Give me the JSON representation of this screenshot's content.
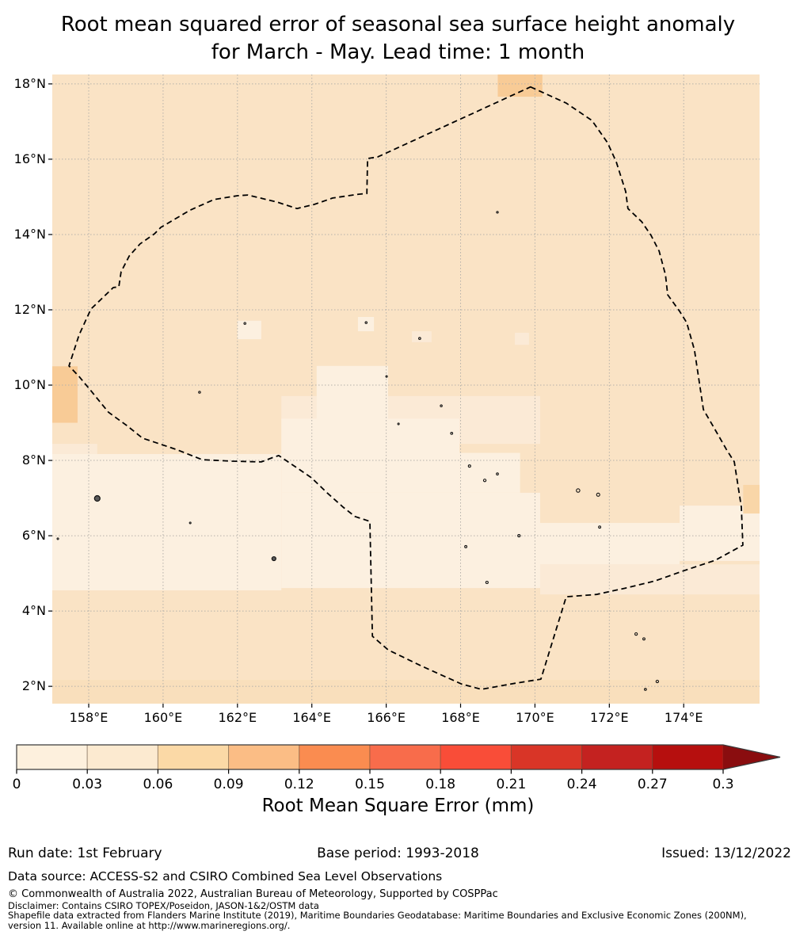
{
  "title": {
    "line1": "Root mean squared error of seasonal sea surface height anomaly",
    "line2": "for March - May. Lead time: 1 month"
  },
  "colorbar": {
    "label": "Root Mean Square Error (mm)",
    "tick_labels": [
      "0",
      "0.03",
      "0.06",
      "0.09",
      "0.12",
      "0.15",
      "0.18",
      "0.21",
      "0.24",
      "0.27",
      "0.3"
    ],
    "segment_colors": [
      "#fdf0dd",
      "#fcead0",
      "#fbd9a6",
      "#fbbd85",
      "#fa8c50",
      "#f86c4b",
      "#f94d38",
      "#d93527",
      "#c42220",
      "#b60f0e"
    ],
    "arrow_color": "#8a0d0f",
    "outline_color": "#3a3a3a",
    "bins": {
      "min": 0,
      "max": 0.3,
      "step": 0.03,
      "extend": "max"
    }
  },
  "footer": {
    "run_date": "Run date: 1st February",
    "base_period": "Base period: 1993-2018",
    "issued": "Issued: 13/12/2022",
    "data_source": "Data source: ACCESS-S2 and CSIRO Combined Sea Level Observations"
  },
  "fine_print": {
    "line1": "© Commonwealth of Australia 2022, Australian Bureau of Meteorology, Supported by COSPPac",
    "line2": "Disclaimer: Contains CSIRO TOPEX/Poseidon, JASON-1&2/OSTM data",
    "line3": "Shapefile data extracted from Flanders Marine Institute (2019), Maritime Boundaries Geodatabase: Maritime Boundaries and Exclusive Economic Zones (200NM),",
    "line4": "version 11. Available online at http://www.marineregions.org/."
  },
  "chart_data": {
    "type": "heatmap",
    "title": "Root mean squared error of seasonal sea surface height anomaly for March - May. Lead time: 1 month",
    "colorbar_label": "Root Mean Square Error (mm)",
    "lon_range": [
      157.02,
      176.04
    ],
    "lat_range": [
      1.54,
      18.25
    ],
    "grid": true,
    "x_ticks": [
      {
        "lon": 158,
        "label": "158°E"
      },
      {
        "lon": 160,
        "label": "160°E"
      },
      {
        "lon": 162,
        "label": "162°E"
      },
      {
        "lon": 164,
        "label": "164°E"
      },
      {
        "lon": 166,
        "label": "166°E"
      },
      {
        "lon": 168,
        "label": "168°E"
      },
      {
        "lon": 170,
        "label": "170°E"
      },
      {
        "lon": 172,
        "label": "172°E"
      },
      {
        "lon": 174,
        "label": "174°E"
      }
    ],
    "y_ticks": [
      {
        "lat": 18,
        "label": "18°N"
      },
      {
        "lat": 16,
        "label": "16°N"
      },
      {
        "lat": 14,
        "label": "14°N"
      },
      {
        "lat": 12,
        "label": "12°N"
      },
      {
        "lat": 10,
        "label": "10°N"
      },
      {
        "lat": 8,
        "label": "8°N"
      },
      {
        "lat": 6,
        "label": "6°N"
      },
      {
        "lat": 4,
        "label": "4°N"
      },
      {
        "lat": 2,
        "label": "2°N"
      }
    ],
    "field_colors": {
      "base": "#fae3c5",
      "cream": "#fcf0e0",
      "semi": "#fbead6",
      "orange": "#f8cb96",
      "orange_light": "#f9d6a8",
      "band": "#f9dfbc",
      "grid_color": "#b5b1aa",
      "boundary_color": "#000000",
      "island_fill": "#5a5a5a",
      "island_stroke": "#111111"
    },
    "field_values_mm": {
      "base": "0.05-0.08",
      "cream": "0.00-0.03",
      "semi": "0.03-0.05",
      "orange": "0.09-0.12",
      "orange_light": "0.08-0.10",
      "band": "0.06-0.09"
    },
    "patches": [
      {
        "color": "band",
        "lon0": 157.02,
        "lon1": 176.04,
        "lat0": 1.54,
        "lat1": 2.17
      },
      {
        "color": "semi",
        "lon0": 157.02,
        "lon1": 158.23,
        "lat0": 8.02,
        "lat1": 8.44
      },
      {
        "color": "semi",
        "lon0": 163.18,
        "lon1": 167.86,
        "lat0": 9.07,
        "lat1": 9.71
      },
      {
        "color": "semi",
        "lon0": 167.86,
        "lon1": 170.14,
        "lat0": 8.44,
        "lat1": 9.71
      },
      {
        "color": "semi",
        "lon0": 170.14,
        "lon1": 176.04,
        "lat0": 4.44,
        "lat1": 5.24
      },
      {
        "color": "semi",
        "lon0": 166.69,
        "lon1": 167.22,
        "lat0": 11.14,
        "lat1": 11.43
      },
      {
        "color": "semi",
        "lon0": 169.46,
        "lon1": 169.84,
        "lat0": 11.07,
        "lat1": 11.39
      },
      {
        "color": "cream",
        "lon0": 164.13,
        "lon1": 166.05,
        "lat0": 9.07,
        "lat1": 10.51
      },
      {
        "color": "cream",
        "lon0": 163.18,
        "lon1": 167.97,
        "lat0": 7.14,
        "lat1": 9.11
      },
      {
        "color": "cream",
        "lon0": 157.02,
        "lon1": 163.18,
        "lat0": 4.55,
        "lat1": 8.17
      },
      {
        "color": "cream",
        "lon0": 163.18,
        "lon1": 170.14,
        "lat0": 4.61,
        "lat1": 7.14
      },
      {
        "color": "cream",
        "lon0": 167.97,
        "lon1": 169.6,
        "lat0": 7.14,
        "lat1": 8.2
      },
      {
        "color": "cream",
        "lon0": 173.89,
        "lon1": 176.04,
        "lat0": 5.33,
        "lat1": 6.8
      },
      {
        "color": "cream",
        "lon0": 170.14,
        "lon1": 173.89,
        "lat0": 5.24,
        "lat1": 6.34
      },
      {
        "color": "cream",
        "lon0": 162.0,
        "lon1": 162.64,
        "lat0": 11.22,
        "lat1": 11.71
      },
      {
        "color": "cream",
        "lon0": 165.24,
        "lon1": 165.67,
        "lat0": 11.43,
        "lat1": 11.81
      },
      {
        "color": "orange",
        "lon0": 157.02,
        "lon1": 157.7,
        "lat0": 9.0,
        "lat1": 10.5
      },
      {
        "color": "orange",
        "lon0": 169.0,
        "lon1": 170.2,
        "lat0": 17.66,
        "lat1": 18.25
      },
      {
        "color": "orange_light",
        "lon0": 175.6,
        "lon1": 176.04,
        "lat0": 6.59,
        "lat1": 7.35
      }
    ],
    "eez_boundary": [
      [
        169.88,
        17.92
      ],
      [
        170.84,
        17.49
      ],
      [
        171.53,
        17.03
      ],
      [
        171.95,
        16.44
      ],
      [
        172.19,
        15.92
      ],
      [
        172.44,
        15.14
      ],
      [
        172.5,
        14.69
      ],
      [
        172.87,
        14.34
      ],
      [
        173.12,
        13.98
      ],
      [
        173.34,
        13.56
      ],
      [
        173.51,
        12.93
      ],
      [
        173.57,
        12.4
      ],
      [
        173.89,
        11.96
      ],
      [
        174.08,
        11.66
      ],
      [
        174.29,
        10.93
      ],
      [
        174.53,
        9.35
      ],
      [
        174.78,
        8.93
      ],
      [
        175.15,
        8.29
      ],
      [
        175.36,
        7.96
      ],
      [
        175.55,
        6.76
      ],
      [
        175.59,
        5.75
      ],
      [
        174.85,
        5.35
      ],
      [
        174.0,
        5.07
      ],
      [
        173.23,
        4.8
      ],
      [
        172.44,
        4.61
      ],
      [
        171.65,
        4.44
      ],
      [
        170.84,
        4.38
      ],
      [
        170.16,
        2.19
      ],
      [
        169.46,
        2.08
      ],
      [
        168.56,
        1.92
      ],
      [
        168.03,
        2.06
      ],
      [
        166.97,
        2.53
      ],
      [
        166.05,
        2.97
      ],
      [
        165.63,
        3.33
      ],
      [
        165.56,
        6.38
      ],
      [
        165.16,
        6.51
      ],
      [
        164.84,
        6.76
      ],
      [
        164.41,
        7.14
      ],
      [
        163.99,
        7.54
      ],
      [
        163.5,
        7.87
      ],
      [
        163.11,
        8.13
      ],
      [
        162.96,
        8.08
      ],
      [
        162.64,
        7.96
      ],
      [
        161.86,
        7.98
      ],
      [
        161.05,
        8.02
      ],
      [
        160.36,
        8.29
      ],
      [
        159.45,
        8.59
      ],
      [
        159.02,
        8.93
      ],
      [
        158.53,
        9.28
      ],
      [
        158.06,
        9.85
      ],
      [
        157.74,
        10.23
      ],
      [
        157.47,
        10.51
      ],
      [
        157.74,
        11.33
      ],
      [
        158.06,
        12.02
      ],
      [
        158.66,
        12.59
      ],
      [
        158.81,
        12.61
      ],
      [
        158.87,
        13.01
      ],
      [
        159.09,
        13.43
      ],
      [
        159.38,
        13.75
      ],
      [
        159.77,
        14.02
      ],
      [
        159.94,
        14.19
      ],
      [
        160.73,
        14.65
      ],
      [
        161.37,
        14.93
      ],
      [
        162.0,
        15.03
      ],
      [
        162.28,
        15.05
      ],
      [
        163.07,
        14.86
      ],
      [
        163.6,
        14.69
      ],
      [
        164.07,
        14.8
      ],
      [
        164.56,
        14.97
      ],
      [
        165.26,
        15.07
      ],
      [
        165.48,
        15.09
      ],
      [
        165.5,
        16.02
      ],
      [
        165.77,
        16.06
      ]
    ],
    "islands": [
      [
        158.23,
        6.99,
        3.5
      ],
      [
        162.98,
        5.39,
        2.5
      ],
      [
        160.98,
        9.81,
        1.2
      ],
      [
        162.2,
        11.64,
        1.2
      ],
      [
        165.46,
        11.66,
        1.2
      ],
      [
        166.9,
        11.24,
        1.3
      ],
      [
        168.99,
        14.59,
        1.1
      ],
      [
        167.48,
        9.45,
        1.2
      ],
      [
        167.76,
        8.72,
        1.3
      ],
      [
        168.24,
        7.85,
        1.5
      ],
      [
        168.65,
        7.47,
        1.6
      ],
      [
        168.99,
        7.64,
        1.3
      ],
      [
        171.16,
        7.2,
        2.2
      ],
      [
        171.7,
        7.09,
        2.0
      ],
      [
        171.74,
        6.23,
        1.4
      ],
      [
        169.57,
        6.0,
        1.5
      ],
      [
        168.14,
        5.71,
        1.4
      ],
      [
        168.71,
        4.76,
        1.5
      ],
      [
        172.72,
        3.39,
        1.6
      ],
      [
        172.93,
        3.26,
        1.4
      ],
      [
        173.29,
        2.13,
        1.6
      ],
      [
        172.97,
        1.92,
        1.3
      ],
      [
        157.17,
        5.92,
        1.0
      ],
      [
        160.73,
        6.34,
        1.0
      ],
      [
        166.01,
        10.23,
        1.0
      ],
      [
        166.33,
        8.97,
        1.0
      ]
    ]
  }
}
